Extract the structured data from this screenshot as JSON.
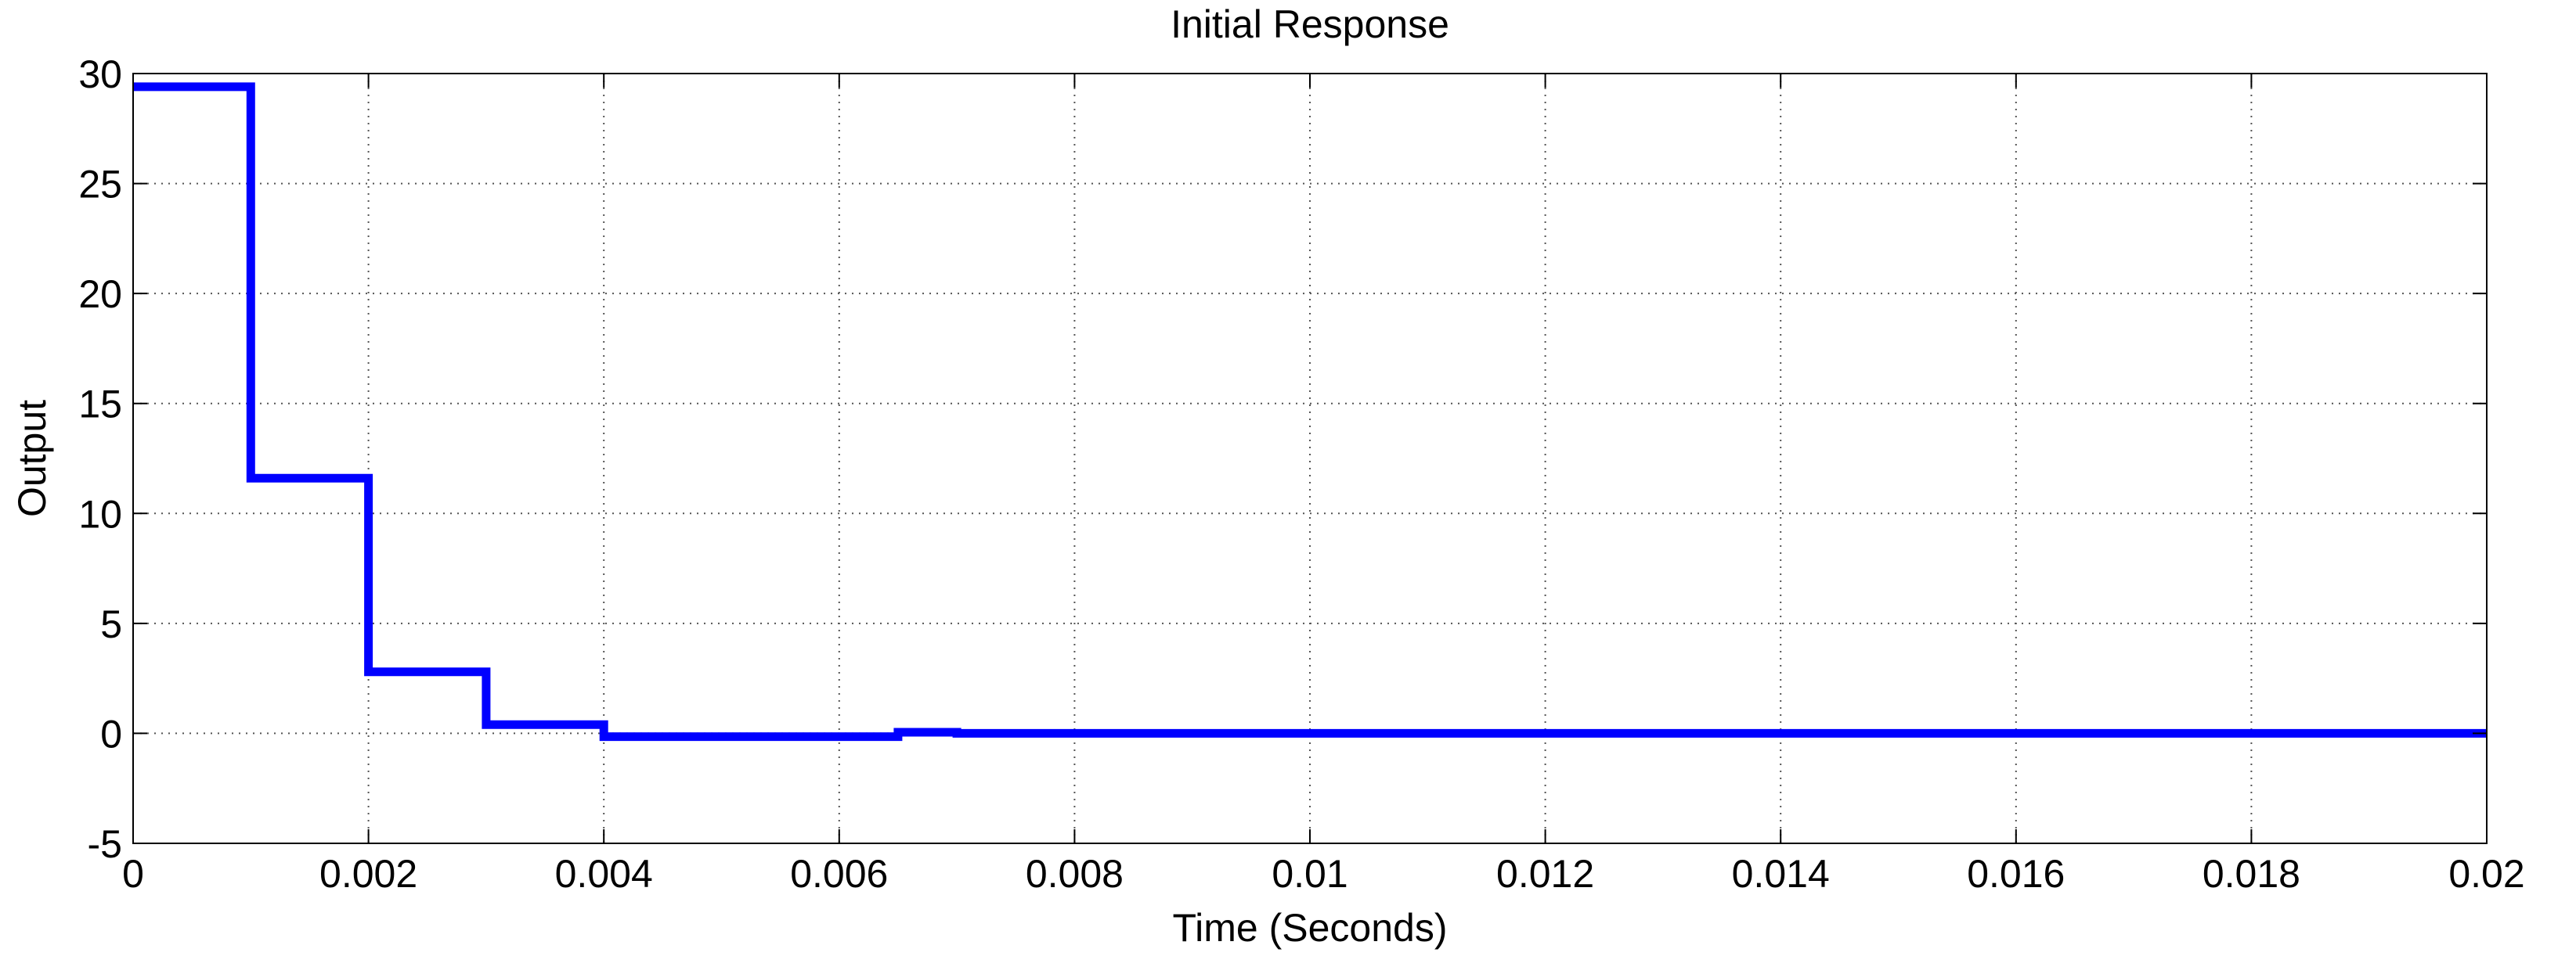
{
  "chart_data": {
    "type": "line",
    "title": "Initial Response",
    "xlabel": "Time (Seconds)",
    "ylabel": "Output",
    "xlim": [
      0,
      0.02
    ],
    "ylim": [
      -5,
      30
    ],
    "xticks": [
      0,
      0.002,
      0.004,
      0.006,
      0.008,
      0.01,
      0.012,
      0.014,
      0.016,
      0.018,
      0.02
    ],
    "xtick_labels": [
      "0",
      "0.002",
      "0.004",
      "0.006",
      "0.008",
      "0.01",
      "0.012",
      "0.014",
      "0.016",
      "0.018",
      "0.02"
    ],
    "yticks": [
      -5,
      0,
      5,
      10,
      15,
      20,
      25,
      30
    ],
    "ytick_labels": [
      "-5",
      "0",
      "5",
      "10",
      "15",
      "20",
      "25",
      "30"
    ],
    "grid": true,
    "line_style": "step",
    "series": [
      {
        "color": "#0000ff",
        "x": [
          0,
          0.001,
          0.001,
          0.002,
          0.002,
          0.003,
          0.003,
          0.004,
          0.004,
          0.0065,
          0.0065,
          0.007,
          0.007,
          0.02
        ],
        "y": [
          29.4,
          29.4,
          11.6,
          11.6,
          2.8,
          2.8,
          0.4,
          0.4,
          -0.15,
          -0.15,
          0.05,
          0.05,
          0.0,
          0.0
        ]
      }
    ]
  }
}
